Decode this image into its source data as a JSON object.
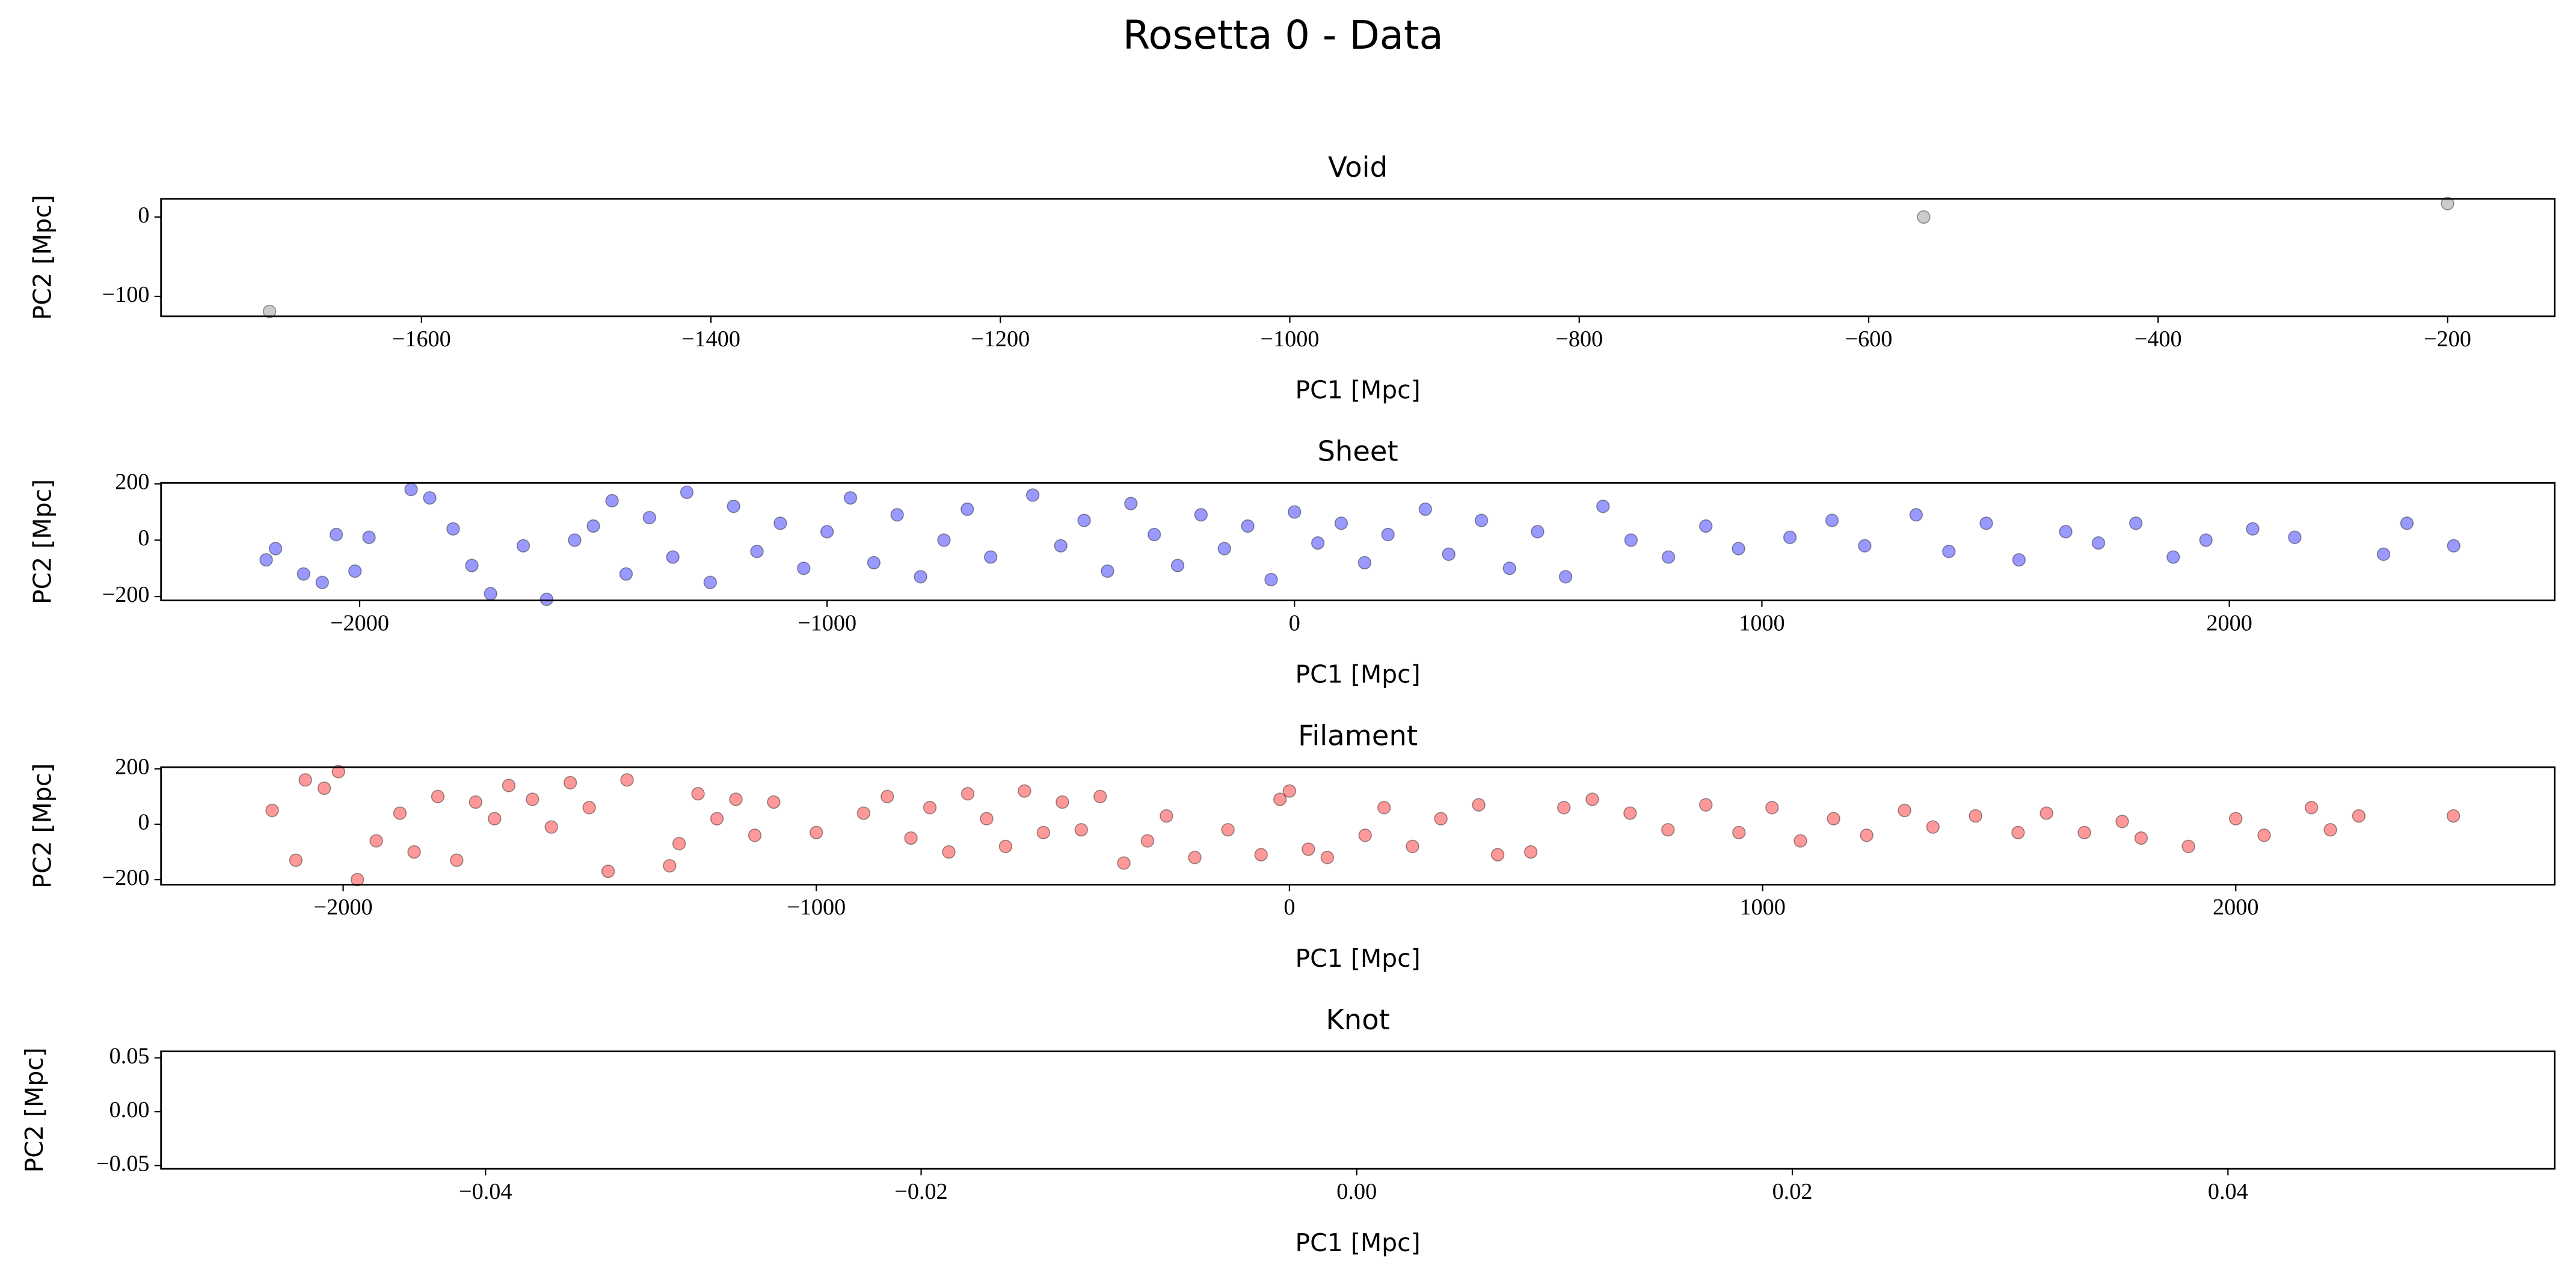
{
  "title": "Rosetta 0 - Data",
  "chart_data": [
    {
      "type": "scatter",
      "title": "Void",
      "x_label": "PC1 [Mpc]",
      "y_label": "PC2 [Mpc]",
      "color": "#808080",
      "x": [
        -1705,
        -562,
        -200
      ],
      "values": [
        -119,
        0,
        17
      ],
      "xlim": [
        -1780,
        -126
      ],
      "ylim": [
        -125,
        23
      ],
      "xticks": [
        {
          "value": -1600,
          "label": "−1600"
        },
        {
          "value": -1400,
          "label": "−1400"
        },
        {
          "value": -1200,
          "label": "−1200"
        },
        {
          "value": -1000,
          "label": "−1000"
        },
        {
          "value": -800,
          "label": "−800"
        },
        {
          "value": -600,
          "label": "−600"
        },
        {
          "value": -400,
          "label": "−400"
        },
        {
          "value": -200,
          "label": "−200"
        }
      ],
      "yticks": [
        {
          "value": -100,
          "label": "−100"
        },
        0
      ]
    },
    {
      "type": "scatter",
      "title": "Sheet",
      "x_label": "PC1 [Mpc]",
      "y_label": "PC2 [Mpc]",
      "color": "#0000ff",
      "x": [
        -2200,
        -2180,
        -2120,
        -2080,
        -2050,
        -2010,
        -1980,
        -1890,
        -1850,
        -1800,
        -1760,
        -1720,
        -1650,
        -1600,
        -1540,
        -1500,
        -1460,
        -1430,
        -1380,
        -1330,
        -1300,
        -1250,
        -1200,
        -1150,
        -1100,
        -1050,
        -1000,
        -950,
        -900,
        -850,
        -800,
        -750,
        -700,
        -650,
        -560,
        -500,
        -450,
        -400,
        -350,
        -300,
        -250,
        -200,
        -150,
        -100,
        -50,
        0,
        50,
        100,
        150,
        200,
        280,
        330,
        400,
        460,
        520,
        580,
        660,
        720,
        800,
        880,
        950,
        1060,
        1150,
        1220,
        1330,
        1400,
        1480,
        1550,
        1650,
        1720,
        1800,
        1880,
        1950,
        2050,
        2140,
        2330,
        2380,
        2480
      ],
      "values": [
        -70,
        -30,
        -120,
        -150,
        20,
        -110,
        10,
        180,
        150,
        40,
        -90,
        -190,
        -20,
        -210,
        0,
        50,
        140,
        -120,
        80,
        -60,
        170,
        -150,
        120,
        -40,
        60,
        -100,
        30,
        150,
        -80,
        90,
        -130,
        0,
        110,
        -60,
        160,
        -20,
        70,
        -110,
        130,
        20,
        -90,
        90,
        -30,
        50,
        -140,
        100,
        -10,
        60,
        -80,
        20,
        110,
        -50,
        70,
        -100,
        30,
        -130,
        120,
        0,
        -60,
        50,
        -30,
        10,
        70,
        -20,
        90,
        -40,
        60,
        -70,
        30,
        -10,
        60,
        -60,
        0,
        40,
        10,
        -50,
        60,
        -20
      ],
      "xlim": [
        -2425,
        2696
      ],
      "ylim": [
        -214,
        203
      ],
      "xticks": [
        {
          "value": -2000,
          "label": "−2000"
        },
        {
          "value": -1000,
          "label": "−1000"
        },
        0,
        1000,
        2000
      ],
      "yticks": [
        {
          "value": -200,
          "label": "−200"
        },
        0,
        200
      ]
    },
    {
      "type": "scatter",
      "title": "Filament",
      "x_label": "PC1 [Mpc]",
      "y_label": "PC2 [Mpc]",
      "color": "#ff0000",
      "x": [
        -2150,
        -2100,
        -2080,
        -2040,
        -2010,
        -1970,
        -1930,
        -1880,
        -1850,
        -1800,
        -1760,
        -1720,
        -1680,
        -1650,
        -1600,
        -1560,
        -1520,
        -1480,
        -1440,
        -1400,
        -1310,
        -1290,
        -1250,
        -1210,
        -1170,
        -1130,
        -1090,
        -1000,
        -900,
        -850,
        -800,
        -760,
        -720,
        -680,
        -640,
        -600,
        -560,
        -520,
        -480,
        -440,
        -400,
        -350,
        -300,
        -260,
        -200,
        -130,
        -60,
        -20,
        0,
        40,
        80,
        160,
        200,
        260,
        320,
        400,
        440,
        510,
        580,
        640,
        720,
        800,
        880,
        950,
        1020,
        1080,
        1150,
        1220,
        1300,
        1360,
        1450,
        1540,
        1600,
        1680,
        1760,
        1800,
        1900,
        2000,
        2060,
        2160,
        2200,
        2260,
        2460
      ],
      "values": [
        50,
        -130,
        160,
        130,
        190,
        -200,
        -60,
        40,
        -100,
        100,
        -130,
        80,
        20,
        140,
        90,
        -10,
        150,
        60,
        -170,
        160,
        -150,
        -70,
        110,
        20,
        90,
        -40,
        80,
        -30,
        40,
        100,
        -50,
        60,
        -100,
        110,
        20,
        -80,
        120,
        -30,
        80,
        -20,
        100,
        -140,
        -60,
        30,
        -120,
        -20,
        -110,
        90,
        120,
        -90,
        -120,
        -40,
        60,
        -80,
        20,
        70,
        -110,
        -100,
        60,
        90,
        40,
        -20,
        70,
        -30,
        60,
        -60,
        20,
        -40,
        50,
        -10,
        30,
        -30,
        40,
        -30,
        10,
        -50,
        -80,
        20,
        -40,
        60,
        -20,
        30,
        30
      ],
      "xlim": [
        -2385,
        2674
      ],
      "ylim": [
        -218,
        206
      ],
      "xticks": [
        {
          "value": -2000,
          "label": "−2000"
        },
        {
          "value": -1000,
          "label": "−1000"
        },
        0,
        1000,
        2000
      ],
      "yticks": [
        {
          "value": -200,
          "label": "−200"
        },
        0,
        200
      ]
    },
    {
      "type": "scatter",
      "title": "Knot",
      "x_label": "PC1 [Mpc]",
      "y_label": "PC2 [Mpc]",
      "color": "#008000",
      "x": [],
      "values": [],
      "xlim": [
        -0.0549,
        0.055
      ],
      "ylim": [
        -0.053,
        0.056
      ],
      "xticks": [
        {
          "value": -0.04,
          "label": "−0.04"
        },
        {
          "value": -0.02,
          "label": "−0.02"
        },
        {
          "value": 0,
          "label": "0.00"
        },
        {
          "value": 0.02,
          "label": "0.02"
        },
        {
          "value": 0.04,
          "label": "0.04"
        }
      ],
      "yticks": [
        {
          "value": -0.05,
          "label": "−0.05"
        },
        {
          "value": 0,
          "label": "0.00"
        },
        {
          "value": 0.05,
          "label": "0.05"
        }
      ]
    }
  ]
}
